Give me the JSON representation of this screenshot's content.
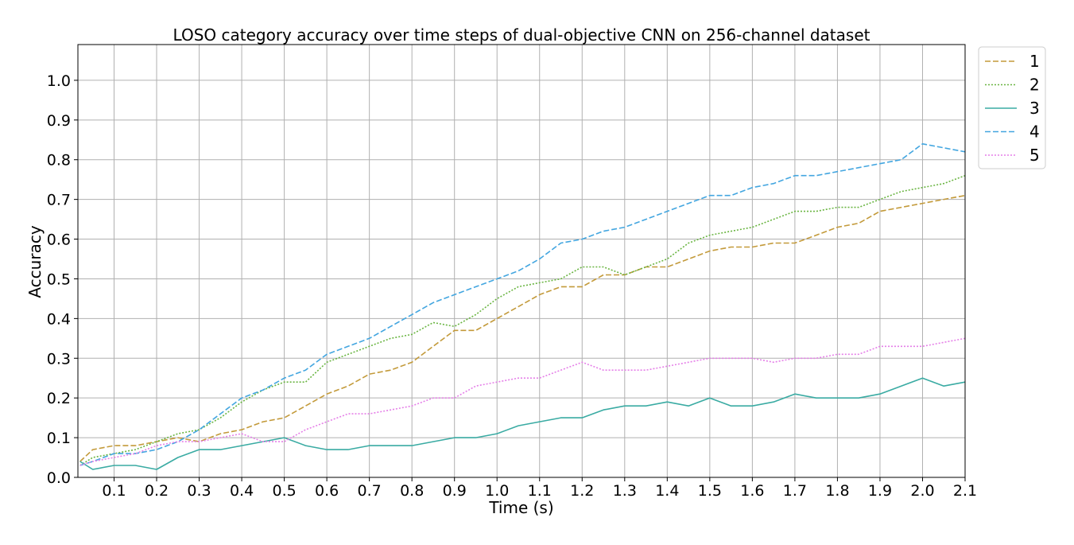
{
  "chart_data": {
    "type": "line",
    "title": "LOSO category accuracy over time steps of dual-objective CNN on 256-channel dataset",
    "xlabel": "Time (s)",
    "ylabel": "Accuracy",
    "xlim": [
      0.015,
      2.1
    ],
    "ylim": [
      0.0,
      1.09
    ],
    "xticks": [
      "0.1",
      "0.2",
      "0.3",
      "0.4",
      "0.5",
      "0.6",
      "0.7",
      "0.8",
      "0.9",
      "1.0",
      "1.1",
      "1.2",
      "1.3",
      "1.4",
      "1.5",
      "1.6",
      "1.7",
      "1.8",
      "1.9",
      "2.0",
      "2.1"
    ],
    "yticks": [
      "0.0",
      "0.1",
      "0.2",
      "0.3",
      "0.4",
      "0.5",
      "0.6",
      "0.7",
      "0.8",
      "0.9",
      "1.0"
    ],
    "grid": true,
    "legend_position": "outside-top-right",
    "x": [
      0.02,
      0.05,
      0.1,
      0.15,
      0.2,
      0.25,
      0.3,
      0.35,
      0.4,
      0.45,
      0.5,
      0.55,
      0.6,
      0.65,
      0.7,
      0.75,
      0.8,
      0.85,
      0.9,
      0.95,
      1.0,
      1.05,
      1.1,
      1.15,
      1.2,
      1.25,
      1.3,
      1.35,
      1.4,
      1.45,
      1.5,
      1.55,
      1.6,
      1.65,
      1.7,
      1.75,
      1.8,
      1.85,
      1.9,
      1.95,
      2.0,
      2.05,
      2.1
    ],
    "series": [
      {
        "name": "1",
        "color": "#c39a3a",
        "dash": "dashed",
        "values": [
          0.04,
          0.07,
          0.08,
          0.08,
          0.09,
          0.1,
          0.09,
          0.11,
          0.12,
          0.14,
          0.15,
          0.18,
          0.21,
          0.23,
          0.26,
          0.27,
          0.29,
          0.33,
          0.37,
          0.37,
          0.4,
          0.43,
          0.46,
          0.48,
          0.48,
          0.51,
          0.51,
          0.53,
          0.53,
          0.55,
          0.57,
          0.58,
          0.58,
          0.59,
          0.59,
          0.61,
          0.63,
          0.64,
          0.67,
          0.68,
          0.69,
          0.7,
          0.71
        ]
      },
      {
        "name": "2",
        "color": "#6ab542",
        "dash": "dotted",
        "values": [
          0.03,
          0.05,
          0.06,
          0.07,
          0.09,
          0.11,
          0.12,
          0.15,
          0.19,
          0.22,
          0.24,
          0.24,
          0.29,
          0.31,
          0.33,
          0.35,
          0.36,
          0.39,
          0.38,
          0.41,
          0.45,
          0.48,
          0.49,
          0.5,
          0.53,
          0.53,
          0.51,
          0.53,
          0.55,
          0.59,
          0.61,
          0.62,
          0.63,
          0.65,
          0.67,
          0.67,
          0.68,
          0.68,
          0.7,
          0.72,
          0.73,
          0.74,
          0.76
        ]
      },
      {
        "name": "3",
        "color": "#3aaba3",
        "dash": "solid",
        "values": [
          0.04,
          0.02,
          0.03,
          0.03,
          0.02,
          0.05,
          0.07,
          0.07,
          0.08,
          0.09,
          0.1,
          0.08,
          0.07,
          0.07,
          0.08,
          0.08,
          0.08,
          0.09,
          0.1,
          0.1,
          0.11,
          0.13,
          0.14,
          0.15,
          0.15,
          0.17,
          0.18,
          0.18,
          0.19,
          0.18,
          0.2,
          0.18,
          0.18,
          0.19,
          0.21,
          0.2,
          0.2,
          0.2,
          0.21,
          0.23,
          0.25,
          0.23,
          0.24
        ]
      },
      {
        "name": "4",
        "color": "#43a6e0",
        "dash": "dashed",
        "values": [
          0.03,
          0.04,
          0.06,
          0.06,
          0.07,
          0.09,
          0.12,
          0.16,
          0.2,
          0.22,
          0.25,
          0.27,
          0.31,
          0.33,
          0.35,
          0.38,
          0.41,
          0.44,
          0.46,
          0.48,
          0.5,
          0.52,
          0.55,
          0.59,
          0.6,
          0.62,
          0.63,
          0.65,
          0.67,
          0.69,
          0.71,
          0.71,
          0.73,
          0.74,
          0.76,
          0.76,
          0.77,
          0.78,
          0.79,
          0.8,
          0.84,
          0.83,
          0.82
        ]
      },
      {
        "name": "5",
        "color": "#e57fe8",
        "dash": "dotted",
        "values": [
          0.03,
          0.04,
          0.05,
          0.06,
          0.08,
          0.09,
          0.09,
          0.1,
          0.11,
          0.09,
          0.09,
          0.12,
          0.14,
          0.16,
          0.16,
          0.17,
          0.18,
          0.2,
          0.2,
          0.23,
          0.24,
          0.25,
          0.25,
          0.27,
          0.29,
          0.27,
          0.27,
          0.27,
          0.28,
          0.29,
          0.3,
          0.3,
          0.3,
          0.29,
          0.3,
          0.3,
          0.31,
          0.31,
          0.33,
          0.33,
          0.33,
          0.34,
          0.35
        ]
      }
    ]
  }
}
